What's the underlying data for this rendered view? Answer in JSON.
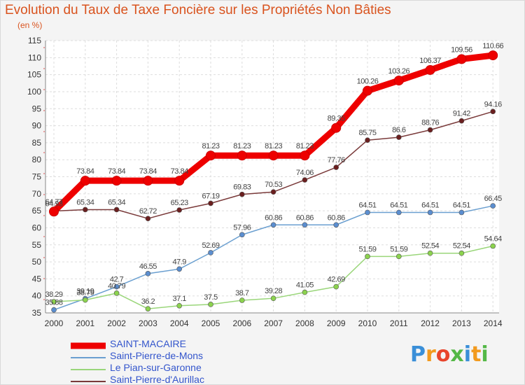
{
  "chart_data": {
    "type": "line",
    "title": "Evolution du Taux de Taxe Foncière sur les Propriétés Non Bâties",
    "ylabel": "(en %)",
    "xlabel": "",
    "x": [
      "2000",
      "2001",
      "2002",
      "2003",
      "2004",
      "2005",
      "2006",
      "2007",
      "2008",
      "2009",
      "2010",
      "2011",
      "2012",
      "2013",
      "2014"
    ],
    "ylim": [
      35,
      115
    ],
    "yticks": [
      35,
      40,
      45,
      50,
      55,
      60,
      65,
      70,
      75,
      80,
      85,
      90,
      95,
      100,
      105,
      110,
      115
    ],
    "grid": true,
    "legend_position": "bottom-left",
    "series": [
      {
        "name": "SAINT-MACAIRE",
        "color": "#ee0000",
        "marker_color": "#ee0000",
        "values": [
          64.77,
          73.84,
          73.84,
          73.84,
          73.84,
          81.23,
          81.23,
          81.23,
          81.23,
          89.35,
          100.26,
          103.26,
          106.37,
          109.56,
          110.66
        ],
        "labels": [
          "64.77",
          "73.84",
          "73.84",
          "73.84",
          "73.84",
          "81.23",
          "81.23",
          "81.23",
          "81.23",
          "89.35",
          "100.26",
          "103.26",
          "106.37",
          "109.56",
          "110.66"
        ]
      },
      {
        "name": "Saint-Pierre-de-Mons",
        "color": "#6a9fd0",
        "marker_color": "#5b8ed0",
        "values": [
          35.88,
          39.19,
          42.7,
          46.55,
          47.9,
          52.69,
          57.96,
          60.86,
          60.86,
          60.86,
          64.51,
          64.51,
          64.51,
          64.51,
          66.45
        ],
        "labels": [
          "35.88",
          "39.19",
          "42.7",
          "46.55",
          "47.9",
          "52.69",
          "57.96",
          "60.86",
          "60.86",
          "60.86",
          "64.51",
          "64.51",
          "64.51",
          "64.51",
          "66.45"
        ]
      },
      {
        "name": "Le Pian-sur-Garonne",
        "color": "#9ad67a",
        "marker_color": "#8cd34e",
        "values": [
          38.29,
          38.79,
          40.79,
          36.2,
          37.1,
          37.5,
          38.7,
          39.28,
          41.05,
          42.69,
          51.59,
          51.59,
          52.54,
          52.54,
          54.64
        ],
        "labels": [
          "38.29",
          "38.79",
          "40.79",
          "36.2",
          "37.1",
          "37.5",
          "38.7",
          "39.28",
          "41.05",
          "42.69",
          "51.59",
          "51.59",
          "52.54",
          "52.54",
          "54.64"
        ]
      },
      {
        "name": "Saint-Pierre-d'Aurillac",
        "color": "#7a3a3a",
        "marker_color": "#6b1f1f",
        "values": [
          64.93,
          65.34,
          65.34,
          62.72,
          65.23,
          67.19,
          69.83,
          70.53,
          74.06,
          77.76,
          85.75,
          86.6,
          88.76,
          91.42,
          94.16
        ],
        "labels": [
          "64.93",
          "65.34",
          "65.34",
          "62.72",
          "65.23",
          "67.19",
          "69.83",
          "70.53",
          "74.06",
          "77.76",
          "85.75",
          "86.6",
          "88.76",
          "91.42",
          "94.16"
        ]
      }
    ]
  },
  "logo": {
    "letters": [
      "P",
      "r",
      "o",
      "x",
      "i",
      "t",
      "i"
    ],
    "colors": [
      "#3a8fd8",
      "#f29a1e",
      "#e8452c",
      "#54b847",
      "#3a8fd8",
      "#f29a1e",
      "#54b847"
    ]
  }
}
